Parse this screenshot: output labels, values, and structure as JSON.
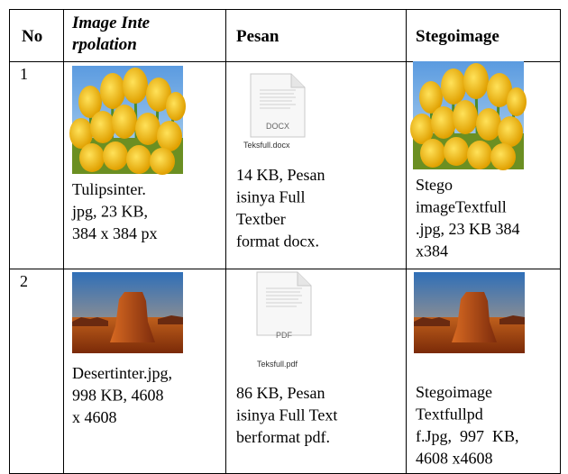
{
  "table": {
    "header": [
      "No",
      [
        "Image Inte",
        "rpolation"
      ],
      "Pesan",
      "Stegoimage"
    ],
    "rows": [
      [
        "1",
        {
          "caption": [
            "Tulipsinter.",
            "jpg, 23 KB,",
            "384 x 384 px"
          ]
        },
        {
          "file_label": "DOCX",
          "file_name": "Teksfull.docx",
          "caption": [
            "14 KB, Pesan",
            "isinya Full",
            "Textber",
            "format docx."
          ]
        },
        {
          "caption": [
            "Stego",
            "imageTextfull",
            ".jpg, 23 KB 384",
            "x384"
          ]
        }
      ],
      [
        "2",
        {
          "caption": [
            "Desertinter.jpg,",
            "998 KB, 4608",
            "x 4608"
          ]
        },
        {
          "file_label": "PDF",
          "file_name": "Teksfull.pdf",
          "caption": [
            "86 KB, Pesan",
            "isinya Full Text",
            "berformat pdf."
          ]
        },
        {
          "caption": [
            "Stegoimage",
            "Textfullpd",
            "f.Jpg,  997  KB,",
            "4608 x4608"
          ]
        }
      ]
    ]
  }
}
